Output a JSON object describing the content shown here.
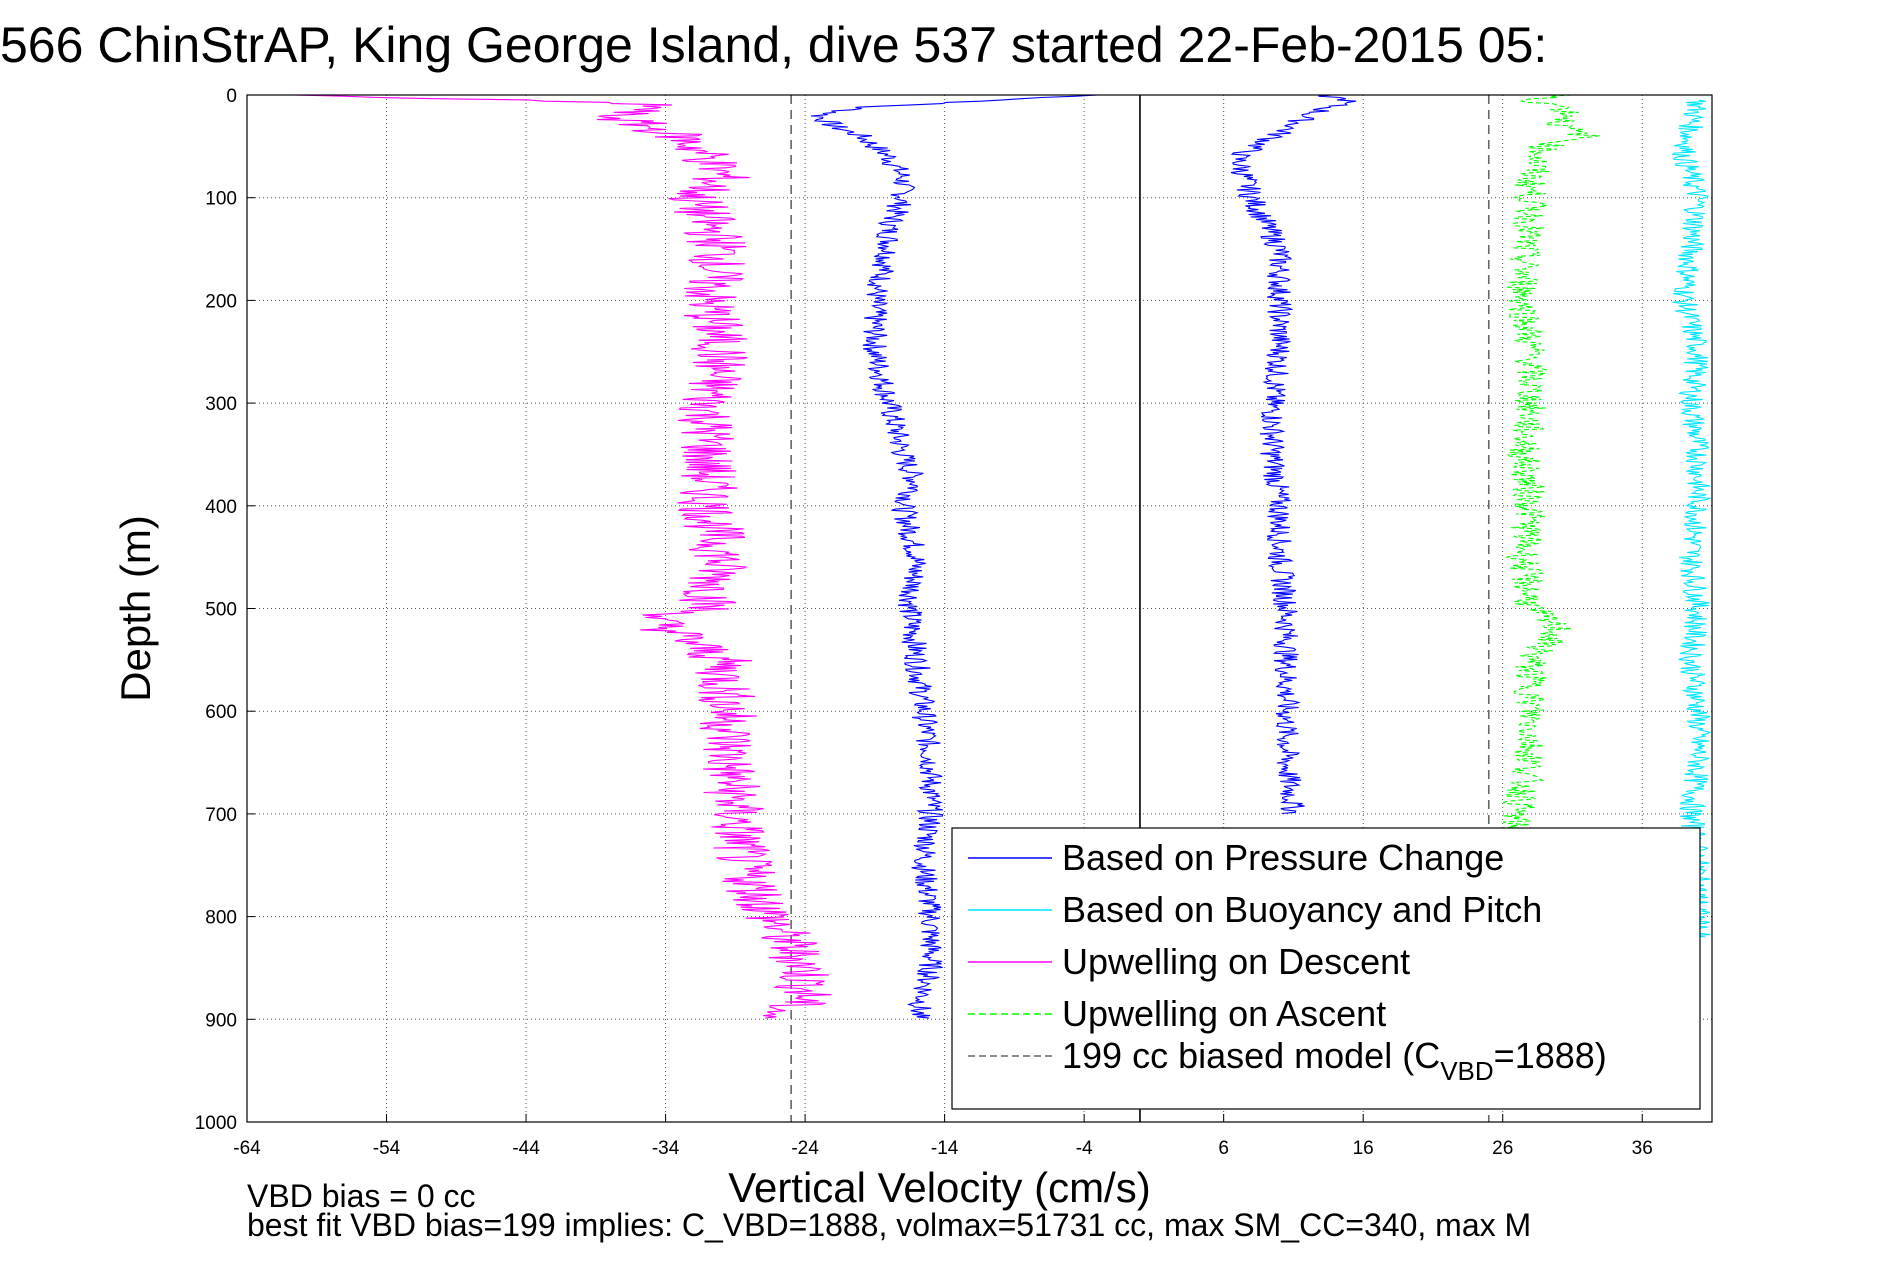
{
  "title": "566 ChinStrAP, King George Island, dive 537 started 22-Feb-2015 05:",
  "footer": {
    "line1": "VBD bias = 0 cc",
    "line2": "best fit VBD bias=199 implies: C_VBD=1888, volmax=51731 cc, max SM_CC=340, max M"
  },
  "chart_data": {
    "type": "line",
    "title": "566 ChinStrAP, King George Island, dive 537 started 22-Feb-2015 05:",
    "xlabel": "Vertical Velocity (cm/s)",
    "ylabel": "Depth (m)",
    "xlim": [
      -64,
      41
    ],
    "ylim": [
      0,
      1000
    ],
    "y_reversed": true,
    "grid": true,
    "legend_position": "bottom-right",
    "x_ticks": [
      "-64",
      "-54",
      "-44",
      "-34",
      "-24",
      "-14",
      "-4",
      "6",
      "16",
      "26",
      "36"
    ],
    "y_ticks": [
      "0",
      "100",
      "200",
      "300",
      "400",
      "500",
      "600",
      "700",
      "800",
      "900",
      "1000"
    ],
    "vertical_lines": [
      {
        "x": -25,
        "style": "dashed",
        "color": "#666666"
      },
      {
        "x": 0,
        "style": "solid",
        "color": "#000000"
      },
      {
        "x": 25,
        "style": "dashed",
        "color": "#666666"
      }
    ],
    "series": [
      {
        "name": "Based on Pressure Change",
        "color": "#0000ff",
        "style": "solid",
        "segments": [
          {
            "depth": [
              0,
              5,
              12,
              20,
              30,
              40,
              60,
              80,
              100,
              130,
              150,
              200,
              250,
              300,
              350,
              380,
              400,
              450,
              500,
              550,
              600,
              650,
              700,
              750,
              800,
              850,
              900
            ],
            "x": [
              -3,
              -10,
              -20,
              -23,
              -22,
              -20,
              -18,
              -17,
              -17,
              -18,
              -18,
              -19,
              -19,
              -18,
              -17,
              -16,
              -17,
              -16,
              -16.5,
              -16,
              -15.5,
              -15,
              -15,
              -15.5,
              -15,
              -15,
              -16
            ]
          },
          {
            "depth": [
              0,
              5,
              10,
              20,
              30,
              45,
              60,
              80,
              100,
              150,
              200,
              250,
              300,
              350,
              400,
              450,
              500,
              550,
              600,
              650,
              700
            ],
            "x": [
              13,
              15,
              14,
              12,
              11,
              9,
              7,
              7.5,
              8,
              10,
              10,
              10,
              9.5,
              9.5,
              10,
              10,
              10.5,
              10.5,
              10.5,
              10.5,
              11
            ]
          }
        ]
      },
      {
        "name": "Based on Buoyancy and Pitch",
        "color": "#00e5ff",
        "style": "solid",
        "segments": [
          {
            "depth": [
              5,
              30,
              60,
              100,
              150,
              200,
              250,
              300,
              350,
              400,
              450,
              500,
              550,
              600,
              650,
              700,
              750,
              800,
              820
            ],
            "x": [
              40,
              39.5,
              39,
              40,
              39.5,
              39,
              40,
              39.5,
              40,
              40,
              39.5,
              40,
              39.5,
              40,
              40,
              39.5,
              40,
              40,
              40
            ]
          }
        ]
      },
      {
        "name": "Upwelling on Descent",
        "color": "#ff00ff",
        "style": "solid",
        "segments": [
          {
            "depth": [
              0,
              5,
              10,
              20,
              40,
              60,
              80,
              100,
              150,
              200,
              250,
              300,
              350,
              400,
              450,
              500,
              510,
              550,
              600,
              650,
              700,
              750,
              800,
              830,
              850,
              880,
              900
            ],
            "x": [
              -62,
              -45,
              -34,
              -38,
              -33,
              -31,
              -30,
              -32,
              -30,
              -31,
              -30,
              -31,
              -31,
              -31,
              -30,
              -31,
              -35,
              -30,
              -29.5,
              -29.5,
              -29,
              -28.5,
              -26.5,
              -25,
              -24,
              -24,
              -27
            ]
          }
        ]
      },
      {
        "name": "Upwelling on Ascent",
        "color": "#00ff00",
        "style": "dashed",
        "segments": [
          {
            "depth": [
              0,
              5,
              10,
              20,
              30,
              40,
              50,
              80,
              120,
              150,
              200,
              250,
              300,
              350,
              400,
              450,
              500,
              520,
              550,
              600,
              650,
              700,
              720
            ],
            "x": [
              30,
              28,
              30,
              31,
              30,
              32,
              29,
              28,
              28,
              27.5,
              27.5,
              28,
              28,
              27.5,
              28,
              27.5,
              28,
              30,
              28,
              28,
              28,
              27,
              26.5
            ]
          }
        ]
      }
    ],
    "legend": [
      {
        "label": "Based on Pressure Change",
        "color": "#0000ff",
        "style": "solid"
      },
      {
        "label": "Based on Buoyancy and Pitch",
        "color": "#00e5ff",
        "style": "solid"
      },
      {
        "label": "Upwelling on Descent",
        "color": "#ff00ff",
        "style": "solid"
      },
      {
        "label": "Upwelling on Ascent",
        "color": "#00ff00",
        "style": "dashed"
      },
      {
        "label": "199 cc biased model (C",
        "subscript": "VBD",
        "suffix": "=1888)",
        "color": "#666666",
        "style": "dashed"
      }
    ]
  }
}
